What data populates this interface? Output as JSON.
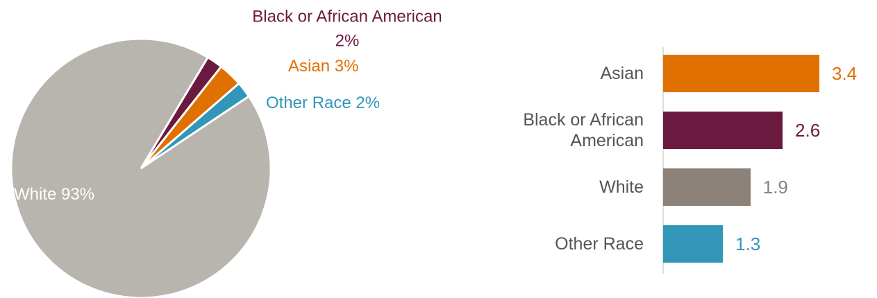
{
  "chart_data": [
    {
      "type": "pie",
      "categories": [
        "White",
        "Black or African American",
        "Asian",
        "Other Race"
      ],
      "values": [
        93,
        2,
        3,
        2
      ],
      "value_labels": [
        "93%",
        "2%",
        "3%",
        "2%"
      ],
      "colors": [
        "#b8b4ae",
        "#6b1a3f",
        "#e07000",
        "#3196b8"
      ]
    },
    {
      "type": "bar",
      "orientation": "horizontal",
      "categories": [
        "Asian",
        "Black or African American",
        "White",
        "Other Race"
      ],
      "values": [
        3.4,
        2.6,
        1.9,
        1.3
      ],
      "colors": [
        "#e07000",
        "#6b1a3f",
        "#8b8178",
        "#3196b8"
      ]
    }
  ]
}
